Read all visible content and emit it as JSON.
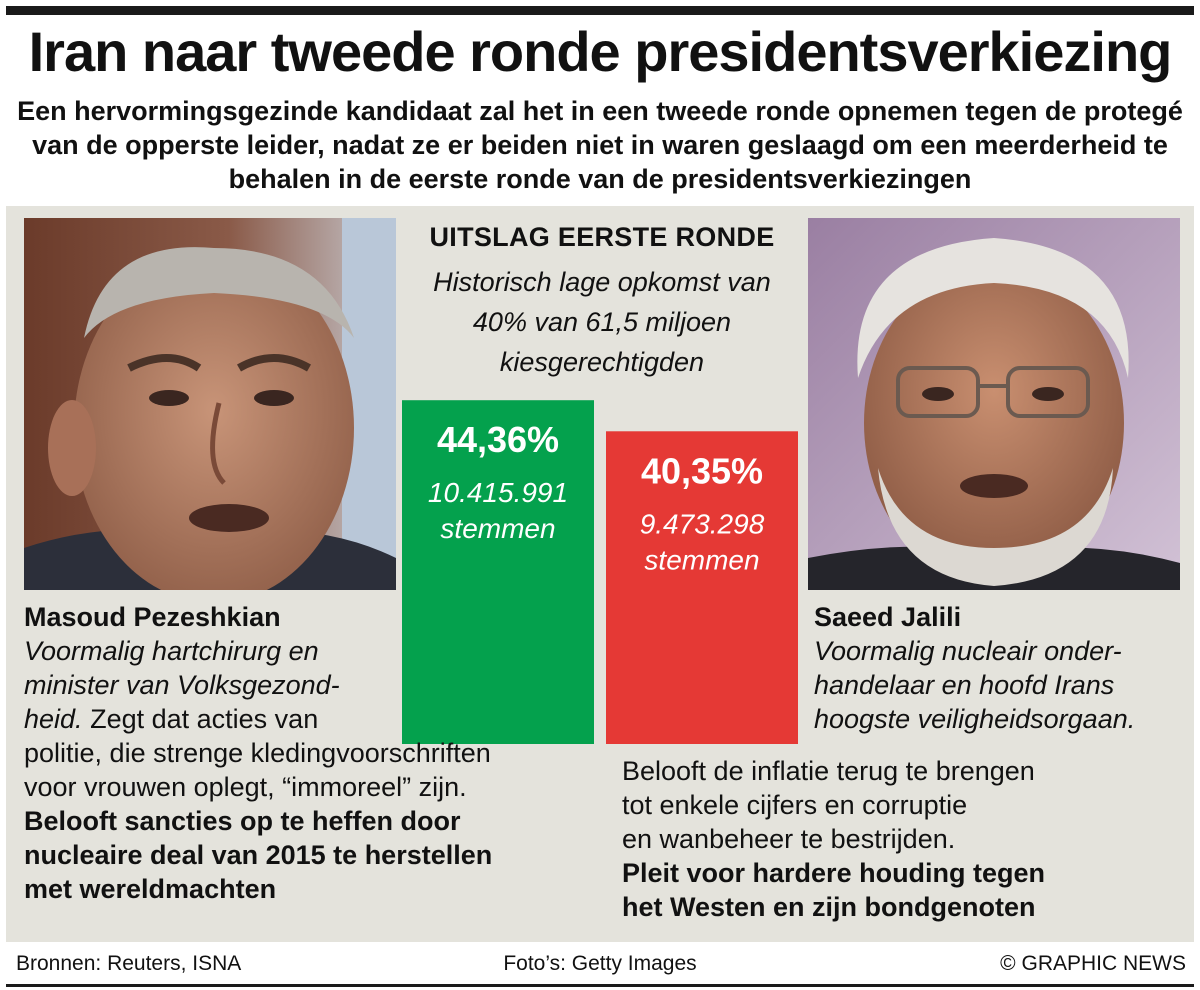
{
  "header": {
    "title": "Iran naar tweede ronde presidentsverkiezing",
    "subtitle": "Een hervormingsgezinde kandidaat zal het in een tweede ronde opnemen tegen de protegé van de opperste leider, nadat ze er beiden niet in waren geslaagd om een meerderheid te behalen in de eerste ronde van de presidentsverkiezingen"
  },
  "result": {
    "title": "UITSLAG EERSTE RONDE",
    "turnout_line1": "Historisch lage opkomst van",
    "turnout_line2": "40% van 61,5 miljoen",
    "turnout_line3": "kiesgerechtigden"
  },
  "chart_data": {
    "type": "bar",
    "categories": [
      "Masoud Pezeshkian",
      "Saeed Jalili"
    ],
    "values": [
      44.36,
      40.35
    ],
    "value_labels": [
      "44,36%",
      "40,35%"
    ],
    "votes": [
      "10.415.991",
      "9.473.298"
    ],
    "votes_unit": "stemmen",
    "colors": [
      "#04a14d",
      "#e53935"
    ],
    "ylim": [
      0,
      48
    ],
    "grid": false
  },
  "candidates": {
    "left": {
      "name": "Masoud Pezeshkian",
      "desc_line1": "Voormalig hartchirurg en",
      "desc_line2": "minister van Volksgezond-",
      "desc_line3": "heid.",
      "text_line1": "Zegt dat acties van",
      "text_line2": "politie, die strenge kledingvoorschriften",
      "text_line3": "voor vrouwen oplegt, “immoreel” zijn.",
      "bold_line1": "Belooft sancties op te heffen door",
      "bold_line2": "nucleaire deal van 2015 te herstellen",
      "bold_line3": "met wereldmachten"
    },
    "right": {
      "name": "Saeed Jalili",
      "desc_line1": "Voormalig nucleair onder-",
      "desc_line2": "handelaar en hoofd Irans",
      "desc_line3": "hoogste veiligheidsorgaan.",
      "text_line1": "Belooft de inflatie terug te brengen",
      "text_line2": "tot enkele cijfers en corruptie",
      "text_line3": "en wanbeheer te bestrijden.",
      "bold_line1": "Pleit voor hardere houding tegen",
      "bold_line2": "het Westen en zijn bondgenoten"
    }
  },
  "footer": {
    "sources": "Bronnen: Reuters, ISNA",
    "photos": "Foto’s: Getty Images",
    "credit": "© GRAPHIC NEWS"
  }
}
